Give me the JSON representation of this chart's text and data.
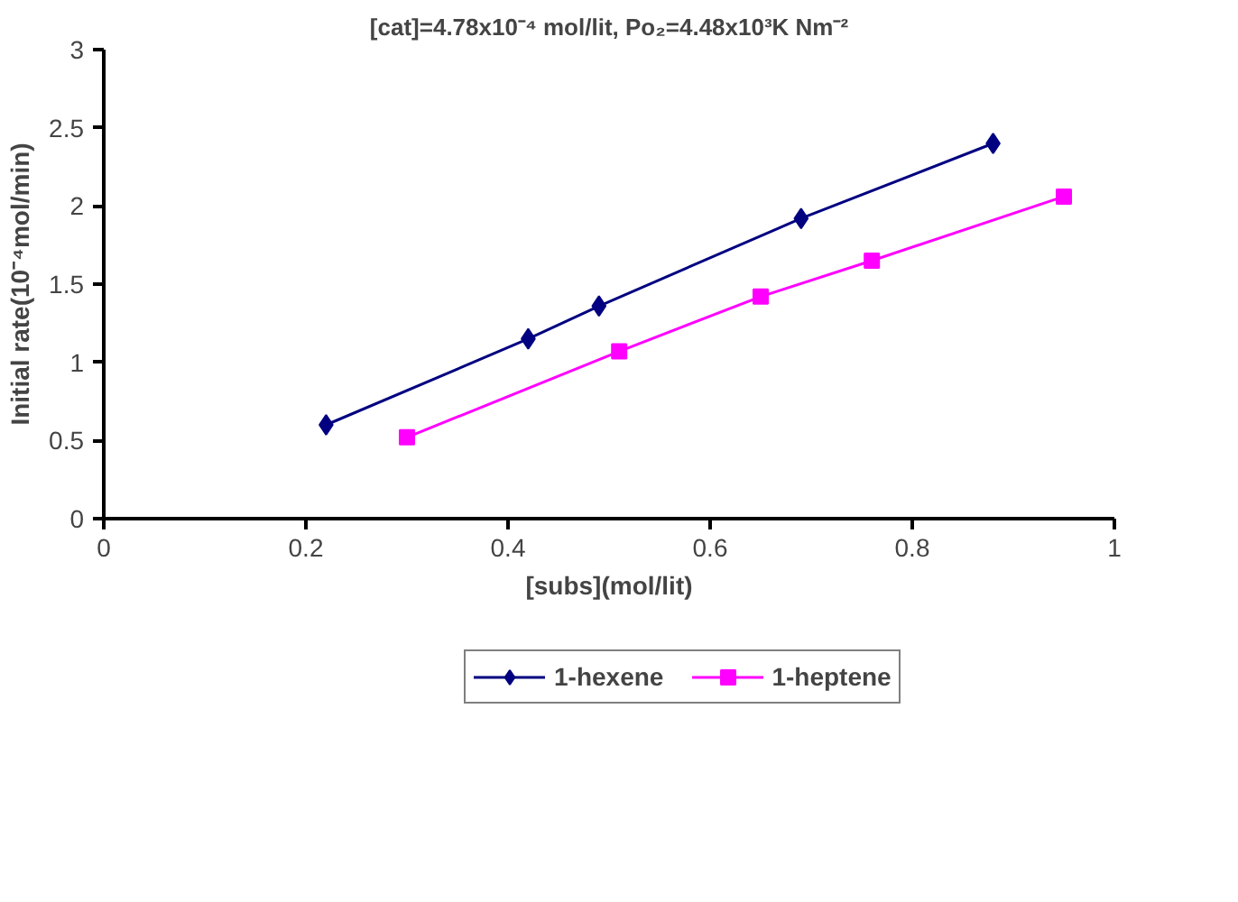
{
  "chart_data": {
    "type": "line",
    "title": "[cat]=4.78x10⁻⁴ mol/lit, Po₂=4.48x10³K Nm⁻²",
    "xlabel": "[subs](mol/lit)",
    "ylabel": "Initial rate(10⁻⁴mol/min)",
    "xlim": [
      0,
      1
    ],
    "xticks": [
      0,
      0.2,
      0.4,
      0.6,
      0.8,
      1
    ],
    "ylim": [
      0,
      3
    ],
    "yticks": [
      0,
      0.5,
      1,
      1.5,
      2,
      2.5,
      3
    ],
    "grid": false,
    "legend": "bottom",
    "series": [
      {
        "name": "1-hexene",
        "color": "#000080",
        "marker": "diamond",
        "x": [
          0.22,
          0.42,
          0.49,
          0.69,
          0.88
        ],
        "values": [
          0.6,
          1.15,
          1.36,
          1.92,
          2.4
        ]
      },
      {
        "name": "1-heptene",
        "color": "#ff00ff",
        "marker": "square",
        "x": [
          0.3,
          0.51,
          0.65,
          0.76,
          0.95
        ],
        "values": [
          0.52,
          1.07,
          1.42,
          1.65,
          2.06
        ]
      }
    ]
  }
}
